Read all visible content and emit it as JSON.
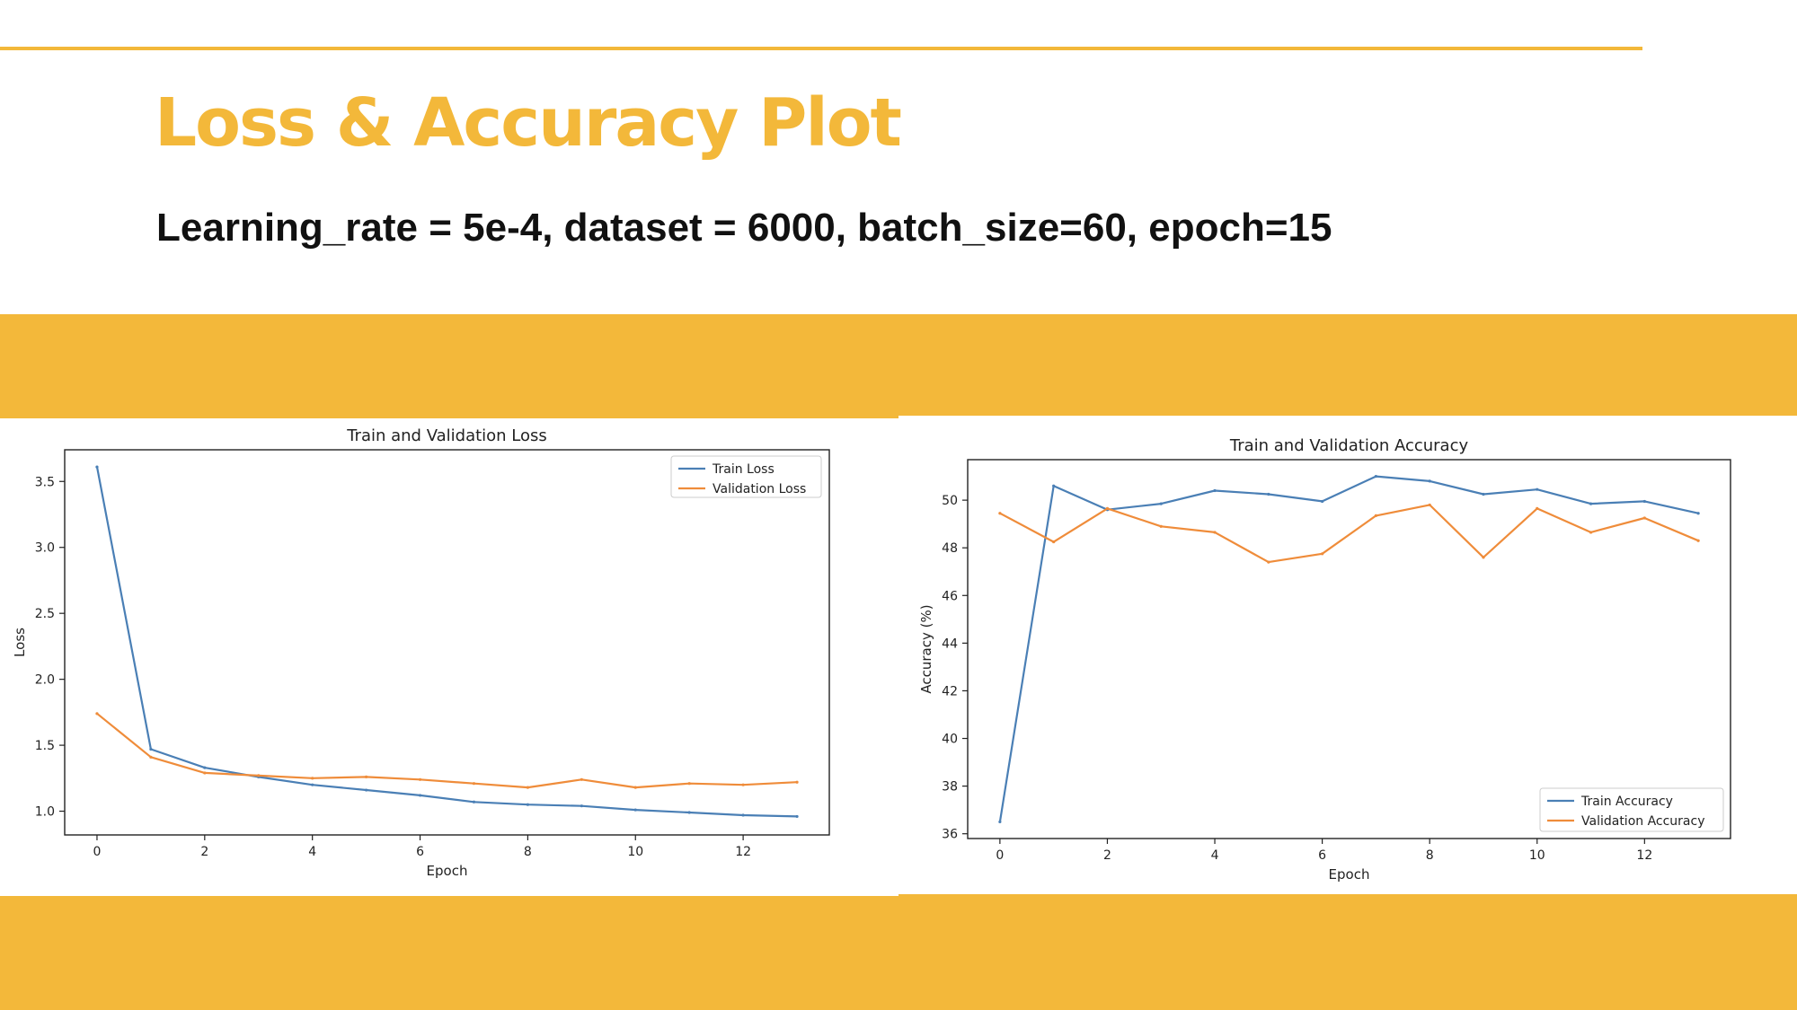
{
  "slide": {
    "title": "Loss & Accuracy Plot",
    "subtitle": "Learning_rate = 5e-4, dataset = 6000, batch_size=60, epoch=15"
  },
  "colors": {
    "accent": "#f3b83a",
    "train": "#4a7fb5",
    "validation": "#ef8c3a"
  },
  "chart_data": [
    {
      "type": "line",
      "title": "Train and Validation Loss",
      "xlabel": "Epoch",
      "ylabel": "Loss",
      "xlim": [
        -0.6,
        13.6
      ],
      "ylim": [
        0.82,
        3.74
      ],
      "xticks": [
        0,
        2,
        4,
        6,
        8,
        10,
        12
      ],
      "yticks": [
        1.0,
        1.5,
        2.0,
        2.5,
        3.0,
        3.5
      ],
      "ytick_labels": [
        "1.0",
        "1.5",
        "2.0",
        "2.5",
        "3.0",
        "3.5"
      ],
      "legend": "upper-right",
      "grid": false,
      "x": [
        0,
        1,
        2,
        3,
        4,
        5,
        6,
        7,
        8,
        9,
        10,
        11,
        12,
        13
      ],
      "series": [
        {
          "name": "Train Loss",
          "color": "#4a7fb5",
          "values": [
            3.61,
            1.47,
            1.33,
            1.26,
            1.2,
            1.16,
            1.12,
            1.07,
            1.05,
            1.04,
            1.01,
            0.99,
            0.97,
            0.96
          ]
        },
        {
          "name": "Validation Loss",
          "color": "#ef8c3a",
          "values": [
            1.74,
            1.41,
            1.29,
            1.27,
            1.25,
            1.26,
            1.24,
            1.21,
            1.18,
            1.24,
            1.18,
            1.21,
            1.2,
            1.22
          ]
        }
      ]
    },
    {
      "type": "line",
      "title": "Train and Validation Accuracy",
      "xlabel": "Epoch",
      "ylabel": "Accuracy (%)",
      "xlim": [
        -0.6,
        13.6
      ],
      "ylim": [
        35.8,
        51.7
      ],
      "xticks": [
        0,
        2,
        4,
        6,
        8,
        10,
        12
      ],
      "yticks": [
        36,
        38,
        40,
        42,
        44,
        46,
        48,
        50
      ],
      "ytick_labels": [
        "36",
        "38",
        "40",
        "42",
        "44",
        "46",
        "48",
        "50"
      ],
      "legend": "lower-right",
      "grid": false,
      "x": [
        0,
        1,
        2,
        3,
        4,
        5,
        6,
        7,
        8,
        9,
        10,
        11,
        12,
        13
      ],
      "series": [
        {
          "name": "Train Accuracy",
          "color": "#4a7fb5",
          "values": [
            36.5,
            50.6,
            49.6,
            49.85,
            50.4,
            50.25,
            49.95,
            51.0,
            50.8,
            50.25,
            50.45,
            49.85,
            49.95,
            49.45
          ]
        },
        {
          "name": "Validation Accuracy",
          "color": "#ef8c3a",
          "values": [
            49.45,
            48.25,
            49.65,
            48.9,
            48.65,
            47.4,
            47.75,
            49.35,
            49.8,
            47.6,
            49.65,
            48.65,
            49.25,
            48.3
          ]
        }
      ]
    }
  ]
}
